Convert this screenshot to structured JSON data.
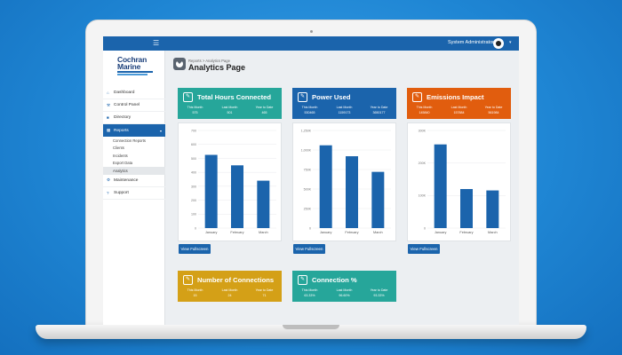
{
  "app": {
    "menu_icon": "hamburger-icon",
    "user_name": "System Administrator",
    "logo_line1": "Cochran",
    "logo_line2": "Marine"
  },
  "sidebar": {
    "items": [
      {
        "label": "Dashboard",
        "icon": "home-icon"
      },
      {
        "label": "Control Panel",
        "icon": "wrench-icon"
      },
      {
        "label": "Directory",
        "icon": "briefcase-icon"
      },
      {
        "label": "Reports",
        "icon": "chart-icon"
      },
      {
        "label": "Maintenance",
        "icon": "gear-icon"
      },
      {
        "label": "Support",
        "icon": "question-icon"
      }
    ],
    "report_subitems": [
      "Connection Reports",
      "Clients",
      "Incidents",
      "Export Data",
      "Analytics"
    ]
  },
  "page": {
    "breadcrumb": "Reports > Analytics Page",
    "title": "Analytics Page"
  },
  "stat_labels": {
    "this_month": "This Month",
    "last_month": "Last Month",
    "ytd": "Year to Date"
  },
  "view_fullscreen_label": "View Fullscreen",
  "cards": [
    {
      "title": "Total Hours Connected",
      "this_month": "575",
      "last_month": "501",
      "ytd": "465"
    },
    {
      "title": "Power Used",
      "this_month": "530465",
      "last_month": "1159173",
      "ytd": "3650177"
    },
    {
      "title": "Emissions Impact",
      "this_month": "145840",
      "last_month": "157884",
      "ytd": "561984"
    },
    {
      "title": "Number of Connections",
      "this_month": "15",
      "last_month": "24",
      "ytd": "71"
    },
    {
      "title": "Connection %",
      "this_month": "63.33%",
      "last_month": "96.60%",
      "ytd": "93.33%"
    }
  ],
  "colors": {
    "teal": "#26a69a",
    "navy": "#1b64ac",
    "orange": "#e15d0e",
    "gold": "#d4a017"
  },
  "chart_data": [
    {
      "type": "bar",
      "categories": [
        "January",
        "February",
        "March"
      ],
      "values": [
        525,
        450,
        340
      ],
      "ylim": [
        0,
        700
      ],
      "ytick_labels": [
        "700",
        "600",
        "500",
        "400",
        "300",
        "200",
        "100",
        "0"
      ]
    },
    {
      "type": "bar",
      "categories": [
        "January",
        "February",
        "March"
      ],
      "values": [
        1060000,
        920000,
        720000
      ],
      "ylim": [
        0,
        1250000
      ],
      "ytick_labels": [
        "1,250K",
        "1,000K",
        "750K",
        "500K",
        "250K",
        "0"
      ]
    },
    {
      "type": "bar",
      "categories": [
        "January",
        "February",
        "March"
      ],
      "values": [
        300000,
        140000,
        135000
      ],
      "ylim": [
        0,
        350000
      ],
      "ytick_labels": [
        "300K",
        "200K",
        "100K",
        "0"
      ]
    }
  ]
}
